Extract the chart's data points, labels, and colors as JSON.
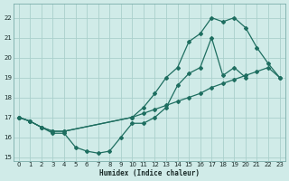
{
  "xlabel": "Humidex (Indice chaleur)",
  "bg_color": "#d0ebe8",
  "grid_color": "#aad0cc",
  "line_color": "#1e6e60",
  "xlim": [
    -0.5,
    23.5
  ],
  "ylim": [
    14.8,
    22.7
  ],
  "yticks": [
    15,
    16,
    17,
    18,
    19,
    20,
    21,
    22
  ],
  "xticks": [
    0,
    1,
    2,
    3,
    4,
    5,
    6,
    7,
    8,
    9,
    10,
    11,
    12,
    13,
    14,
    15,
    16,
    17,
    18,
    19,
    20,
    21,
    22,
    23
  ],
  "series": [
    {
      "x": [
        0,
        1,
        2,
        3,
        4,
        5,
        6,
        7,
        8,
        9,
        10,
        11,
        12,
        13,
        14,
        15,
        16,
        17,
        18,
        19,
        20
      ],
      "y": [
        17.0,
        16.8,
        16.5,
        16.2,
        16.2,
        15.5,
        15.3,
        15.2,
        15.3,
        16.0,
        16.7,
        16.7,
        17.0,
        17.5,
        18.6,
        19.2,
        19.5,
        21.0,
        19.1,
        19.5,
        19.0
      ]
    },
    {
      "x": [
        0,
        1,
        2,
        3,
        4,
        10,
        11,
        12,
        13,
        14,
        15,
        16,
        17,
        18,
        19,
        20,
        21,
        22,
        23
      ],
      "y": [
        17.0,
        16.8,
        16.5,
        16.3,
        16.3,
        17.0,
        17.5,
        18.2,
        19.0,
        19.5,
        20.8,
        21.2,
        22.0,
        21.8,
        22.0,
        21.5,
        20.5,
        19.7,
        19.0
      ]
    },
    {
      "x": [
        0,
        1,
        2,
        3,
        4,
        10,
        11,
        12,
        13,
        14,
        15,
        16,
        17,
        18,
        19,
        20,
        21,
        22,
        23
      ],
      "y": [
        17.0,
        16.8,
        16.5,
        16.3,
        16.3,
        17.0,
        17.2,
        17.4,
        17.6,
        17.8,
        18.0,
        18.2,
        18.5,
        18.7,
        18.9,
        19.1,
        19.3,
        19.5,
        19.0
      ]
    }
  ]
}
